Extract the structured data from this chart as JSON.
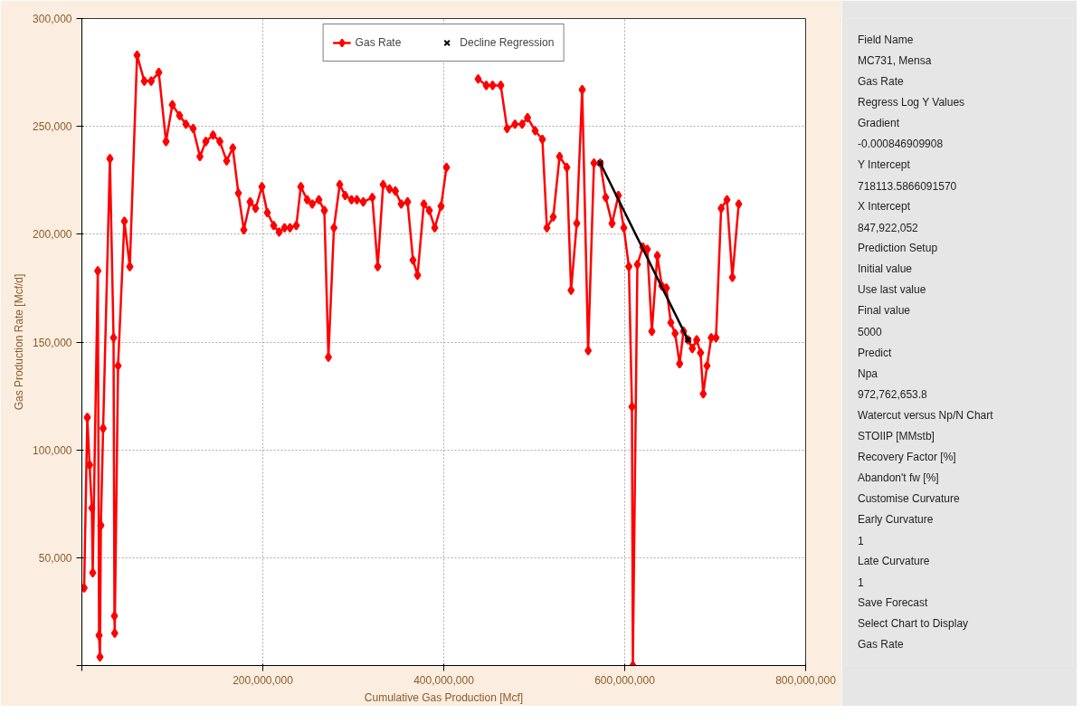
{
  "chart_data": [
    {
      "type": "line",
      "xlabel": "Cumulative Gas Production [Mcf]",
      "ylabel": "Gas Production Rate [Mcf/d]",
      "xlim": [
        0,
        800000000
      ],
      "ylim": [
        0,
        300000
      ],
      "xticks": [
        {
          "value": 0,
          "label": null
        },
        {
          "value": 200000000,
          "label": "200,000,000"
        },
        {
          "value": 400000000,
          "label": "400,000,000"
        },
        {
          "value": 600000000,
          "label": "600,000,000"
        },
        {
          "value": 800000000,
          "label": "800,000,000"
        }
      ],
      "yticks": [
        {
          "value": 0,
          "label": null
        },
        {
          "value": 50000,
          "label": "50,000"
        },
        {
          "value": 100000,
          "label": "100,000"
        },
        {
          "value": 150000,
          "label": "150,000"
        },
        {
          "value": 200000,
          "label": "200,000"
        },
        {
          "value": 250000,
          "label": "250,000"
        },
        {
          "value": 300000,
          "label": "300,000"
        }
      ],
      "grid": true,
      "legend": "top",
      "series": [
        {
          "name": "Gas Rate",
          "type": "line",
          "color": "#ff0000",
          "marker": "diamond",
          "line_style": "solid",
          "x": [
            2500000,
            6000000,
            8500000,
            11000000,
            12000000,
            17600000,
            19000000,
            20000000,
            21000000,
            23500000,
            31000000,
            35000000,
            36000000,
            36300000,
            40000000,
            47000000,
            53000000,
            61000000,
            69000000,
            76600000,
            85000000,
            93000000,
            100000000,
            108000000,
            115000000,
            123000000,
            130500000,
            137000000,
            145000000,
            152500000,
            160000000,
            166800000,
            173000000,
            179000000,
            186000000,
            192000000,
            199000000,
            205000000,
            212000000,
            218000000,
            224000000,
            230000000,
            237000000,
            242000000,
            249000000,
            254600000,
            262000000,
            268000000,
            272500000,
            278600000,
            285000000,
            291000000,
            298000000,
            304000000,
            311000000,
            321000000,
            327000000,
            333000000,
            340000000,
            346500000,
            353000000,
            360000000,
            366000000,
            371000000,
            378000000,
            384000000,
            390000000,
            397000000,
            403000000,
            412000000,
            438000000,
            447000000,
            454000000,
            463000000,
            470000000,
            478700000,
            486600000,
            492600000,
            501000000,
            509000000,
            514000000,
            521000000,
            528000000,
            536000000,
            540700000,
            547000000,
            553000000,
            559600000,
            566000000,
            573000000,
            579000000,
            586000000,
            593000000,
            599000000,
            604600000,
            608000000,
            609000000,
            614000000,
            620000000,
            625000000,
            630000000,
            636000000,
            641000000,
            646000000,
            651000000,
            655700000,
            660700000,
            665000000,
            670000000,
            674700000,
            679600000,
            683800000,
            686800000,
            691000000,
            695600000,
            700900000,
            706600000,
            713000000,
            719000000,
            726000000
          ],
          "values": [
            36000,
            115000,
            93000,
            73000,
            43000,
            183000,
            14000,
            4000,
            65000,
            110000,
            235000,
            152000,
            23000,
            15000,
            139000,
            206000,
            185000,
            283000,
            271000,
            271000,
            275000,
            243000,
            260000,
            255000,
            251000,
            249000,
            236000,
            243000,
            246000,
            243000,
            234000,
            240000,
            219000,
            202000,
            215000,
            212000,
            222000,
            210000,
            204000,
            201000,
            203000,
            203000,
            204000,
            222000,
            216000,
            214000,
            216000,
            211000,
            143000,
            203000,
            223000,
            218000,
            216000,
            216000,
            215000,
            217000,
            185000,
            223000,
            221000,
            220000,
            214000,
            215000,
            188000,
            181000,
            214000,
            211000,
            203000,
            213000,
            231000,
            null,
            272000,
            269000,
            269000,
            269000,
            249000,
            251000,
            251000,
            254000,
            248000,
            244000,
            203000,
            208000,
            236000,
            231000,
            174000,
            205000,
            267000,
            146000,
            233000,
            233000,
            217000,
            205000,
            218000,
            203000,
            185000,
            120000,
            0,
            186000,
            194000,
            193000,
            155000,
            190000,
            176000,
            175000,
            159000,
            154000,
            140000,
            155000,
            151000,
            147000,
            151000,
            145000,
            126000,
            139000,
            152000,
            152000,
            212000,
            216000,
            180000,
            214000
          ]
        },
        {
          "name": "Decline Regression",
          "type": "line",
          "color": "#000000",
          "marker": "cross",
          "line_style": "solid",
          "x": [
            573000000,
            670000000
          ],
          "values": [
            233000,
            151000
          ]
        }
      ]
    },
    {
      "type": "other",
      "annotations": [
        "Field Name",
        "MC731, Mensa",
        "Gas Rate",
        "Regress Log Y Values",
        "Gradient",
        "-0.000846909908",
        "Y Intercept",
        "718113.5866091570",
        "X Intercept",
        "847,922,052",
        "Prediction Setup",
        "Initial value",
        "Use last value",
        "Final value",
        "5000",
        "Predict",
        "Npa",
        "972,762,653.8",
        "Watercut versus Np/N Chart",
        "STOIIP [MMstb]",
        "Recovery Factor [%]",
        "Abandon't fw [%]",
        "Customise Curvature",
        "Early Curvature",
        "1",
        "Late Curvature",
        "1",
        "Save Forecast",
        "Select Chart to Display",
        "Gas Rate"
      ]
    }
  ]
}
